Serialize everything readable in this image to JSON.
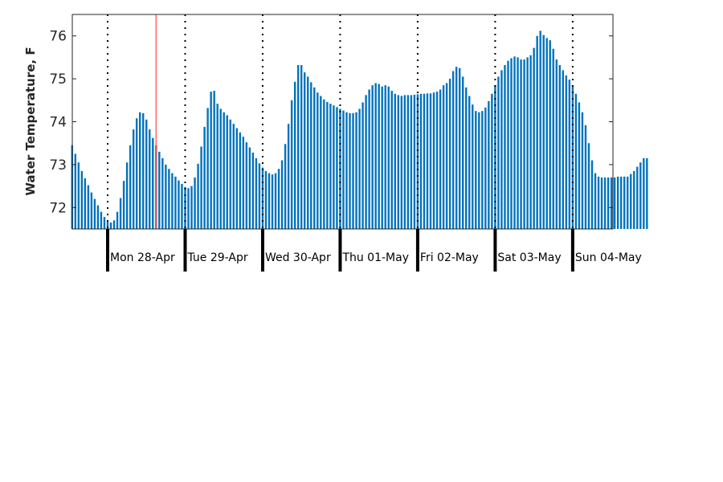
{
  "chart_data": {
    "type": "bar",
    "title": "",
    "ylabel": "Water Temperature, F",
    "xlabel": "",
    "ylim": [
      71.5,
      76.5
    ],
    "yticks": [
      72,
      73,
      74,
      75,
      76
    ],
    "grid": false,
    "bar_color": "#0072bd",
    "marker_color": "#ff5555",
    "divider_color": "#000000",
    "days": [
      "Mon 28-Apr",
      "Tue 29-Apr",
      "Wed 30-Apr",
      "Thu 01-May",
      "Fri 02-May",
      "Sat 03-May",
      "Sun 04-May"
    ],
    "hour_start": -11,
    "hour_step": 1,
    "marker_hour": 15,
    "values": [
      73.45,
      73.25,
      73.05,
      72.85,
      72.68,
      72.52,
      72.35,
      72.2,
      72.05,
      71.9,
      71.78,
      71.68,
      71.65,
      71.7,
      71.9,
      72.22,
      72.62,
      73.05,
      73.45,
      73.82,
      74.08,
      74.22,
      74.2,
      74.05,
      73.82,
      73.62,
      73.45,
      73.3,
      73.15,
      73.0,
      72.9,
      72.8,
      72.72,
      72.63,
      72.55,
      72.48,
      72.45,
      72.5,
      72.7,
      73.02,
      73.42,
      73.88,
      74.32,
      74.7,
      74.72,
      74.42,
      74.3,
      74.22,
      74.15,
      74.05,
      73.95,
      73.85,
      73.75,
      73.65,
      73.52,
      73.4,
      73.28,
      73.15,
      73.03,
      72.93,
      72.85,
      72.8,
      72.77,
      72.8,
      72.9,
      73.1,
      73.48,
      73.95,
      74.5,
      74.93,
      75.32,
      75.32,
      75.15,
      75.05,
      74.92,
      74.8,
      74.68,
      74.6,
      74.52,
      74.46,
      74.42,
      74.38,
      74.34,
      74.3,
      74.26,
      74.22,
      74.2,
      74.2,
      74.22,
      74.3,
      74.45,
      74.62,
      74.75,
      74.85,
      74.9,
      74.88,
      74.82,
      74.85,
      74.82,
      74.72,
      74.65,
      74.62,
      74.6,
      74.62,
      74.62,
      74.62,
      74.63,
      74.64,
      74.65,
      74.65,
      74.66,
      74.66,
      74.68,
      74.7,
      74.75,
      74.85,
      74.9,
      75.0,
      75.18,
      75.28,
      75.25,
      75.05,
      74.8,
      74.6,
      74.4,
      74.25,
      74.22,
      74.25,
      74.33,
      74.48,
      74.65,
      74.85,
      75.05,
      75.2,
      75.32,
      75.42,
      75.48,
      75.52,
      75.5,
      75.45,
      75.45,
      75.5,
      75.55,
      75.72,
      76.0,
      76.12,
      76.02,
      75.95,
      75.9,
      75.7,
      75.45,
      75.32,
      75.2,
      75.08,
      74.98,
      74.85,
      74.65,
      74.45,
      74.22,
      73.92,
      73.5,
      73.1,
      72.8,
      72.72,
      72.7,
      72.7,
      72.7,
      72.7,
      72.7,
      72.72,
      72.72,
      72.72,
      72.72,
      72.78,
      72.85,
      72.95,
      73.05,
      73.15,
      73.15
    ]
  }
}
